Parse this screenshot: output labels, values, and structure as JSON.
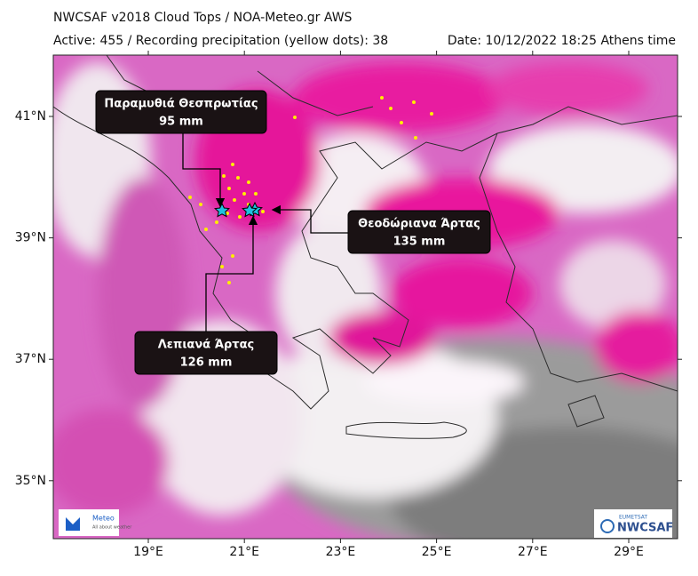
{
  "header": {
    "title": "NWCSAF v2018 Cloud Tops / NOA-Meteo.gr AWS",
    "active": "Active: 455 / Recording precipitation (yellow dots): 38",
    "date": "Date: 10/12/2022 18:25 Athens time"
  },
  "map": {
    "lat_ticks": [
      {
        "value": 41,
        "label": "41°N"
      },
      {
        "value": 39,
        "label": "39°N"
      },
      {
        "value": 37,
        "label": "37°N"
      },
      {
        "value": 35,
        "label": "35°N"
      }
    ],
    "lon_ticks": [
      {
        "value": 19,
        "label": "19°E"
      },
      {
        "value": 21,
        "label": "21°E"
      },
      {
        "value": 23,
        "label": "23°E"
      },
      {
        "value": 25,
        "label": "25°E"
      },
      {
        "value": 27,
        "label": "27°E"
      },
      {
        "value": 29,
        "label": "29°E"
      }
    ]
  },
  "stations": [
    {
      "name": "Παραμυθιά Θεσπρωτίας",
      "amount": "95 mm"
    },
    {
      "name": "Θεοδώριανα Άρτας",
      "amount": "135 mm"
    },
    {
      "name": "Λεπιανά Άρτας",
      "amount": "126 mm"
    }
  ],
  "logos": {
    "meteo": "Meteo",
    "meteo_tagline": "All about weather",
    "eumetsat": "EUMETSAT",
    "nwcsaf": "NWCSAF"
  }
}
